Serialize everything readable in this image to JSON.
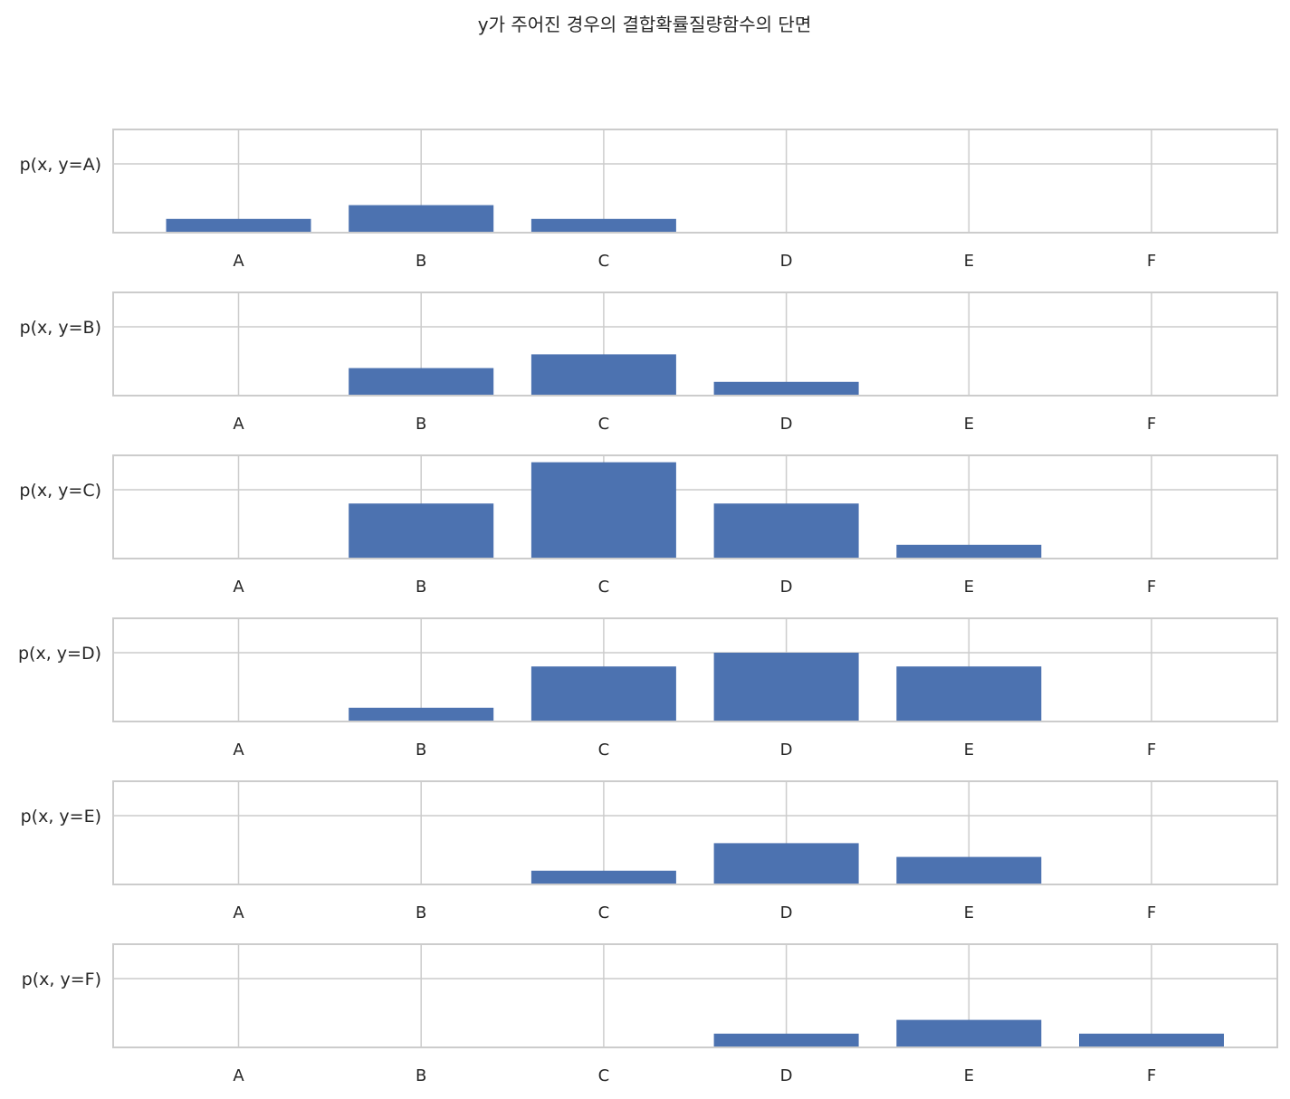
{
  "chart_data": {
    "type": "bar",
    "title": "y가 주어진 경우의 결합확률질량함수의 단면",
    "categories": [
      "A",
      "B",
      "C",
      "D",
      "E",
      "F"
    ],
    "ylim": [
      0,
      0.075
    ],
    "grid": true,
    "bar_color": "#4c72b0",
    "panels": [
      {
        "ylabel": "p(x, y=A)",
        "values": [
          0.01,
          0.02,
          0.01,
          0.0,
          0.0,
          0.0
        ]
      },
      {
        "ylabel": "p(x, y=B)",
        "values": [
          0.0,
          0.02,
          0.03,
          0.01,
          0.0,
          0.0
        ]
      },
      {
        "ylabel": "p(x, y=C)",
        "values": [
          0.0,
          0.04,
          0.07,
          0.04,
          0.01,
          0.0
        ]
      },
      {
        "ylabel": "p(x, y=D)",
        "values": [
          0.0,
          0.01,
          0.04,
          0.05,
          0.04,
          0.0
        ]
      },
      {
        "ylabel": "p(x, y=E)",
        "values": [
          0.0,
          0.0,
          0.01,
          0.03,
          0.02,
          0.0
        ]
      },
      {
        "ylabel": "p(x, y=F)",
        "values": [
          0.0,
          0.0,
          0.0,
          0.01,
          0.02,
          0.01
        ]
      }
    ]
  }
}
